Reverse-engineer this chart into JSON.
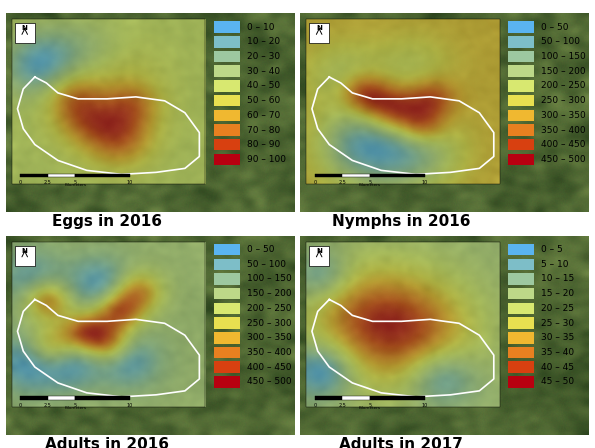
{
  "panels": [
    {
      "title": "Eggs in 2016",
      "legend_labels": [
        "0 – 10",
        "10 – 20",
        "20 – 30",
        "30 – 40",
        "40 – 50",
        "50 – 60",
        "60 – 70",
        "70 – 80",
        "80 – 90",
        "90 – 100"
      ],
      "legend_colors": [
        "#5ab4f0",
        "#7dbec8",
        "#9dc8a0",
        "#bdd888",
        "#d8e870",
        "#e8e050",
        "#f0b830",
        "#e88020",
        "#d84010",
        "#b80010"
      ]
    },
    {
      "title": "Nymphs in 2016",
      "legend_labels": [
        "0 – 50",
        "50 – 100",
        "100 – 150",
        "150 – 200",
        "200 – 250",
        "250 – 300",
        "300 – 350",
        "350 – 400",
        "400 – 450",
        "450 – 500"
      ],
      "legend_colors": [
        "#5ab4f0",
        "#7dbec8",
        "#9dc8a0",
        "#bdd888",
        "#d8e870",
        "#e8e050",
        "#f0b830",
        "#e88020",
        "#d84010",
        "#b80010"
      ]
    },
    {
      "title": "Adults in 2016",
      "legend_labels": [
        "0 – 50",
        "50 – 100",
        "100 – 150",
        "150 – 200",
        "200 – 250",
        "250 – 300",
        "300 – 350",
        "350 – 400",
        "400 – 450",
        "450 – 500"
      ],
      "legend_colors": [
        "#5ab4f0",
        "#7dbec8",
        "#9dc8a0",
        "#bdd888",
        "#d8e870",
        "#e8e050",
        "#f0b830",
        "#e88020",
        "#d84010",
        "#b80010"
      ]
    },
    {
      "title": "Adults in 2017",
      "legend_labels": [
        "0 – 5",
        "5 – 10",
        "10 – 15",
        "15 – 20",
        "20 – 25",
        "25 – 30",
        "30 – 35",
        "35 – 40",
        "40 – 45",
        "45 – 50"
      ],
      "legend_colors": [
        "#5ab4f0",
        "#7dbec8",
        "#9dc8a0",
        "#bdd888",
        "#d8e870",
        "#e8e050",
        "#f0b830",
        "#e88020",
        "#d84010",
        "#b80010"
      ]
    }
  ],
  "background_color": "#ffffff",
  "title_fontsize": 11,
  "legend_fontsize": 6.5
}
